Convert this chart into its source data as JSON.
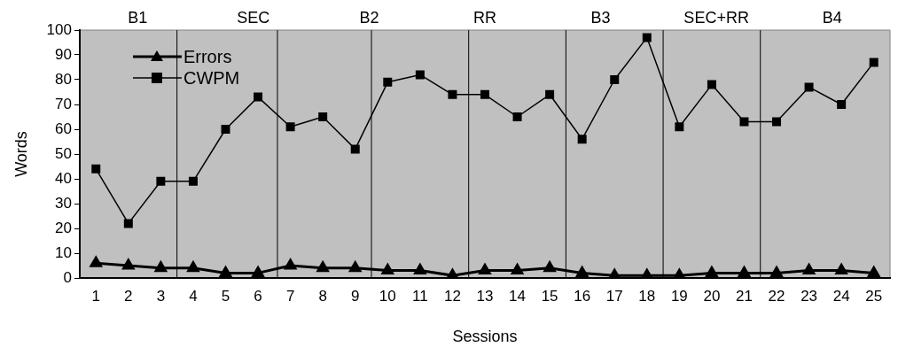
{
  "chart_data": {
    "type": "line",
    "xlabel": "Sessions",
    "ylabel": "Words",
    "x": [
      1,
      2,
      3,
      4,
      5,
      6,
      7,
      8,
      9,
      10,
      11,
      12,
      13,
      14,
      15,
      16,
      17,
      18,
      19,
      20,
      21,
      22,
      23,
      24,
      25
    ],
    "xlim": [
      0.5,
      25.5
    ],
    "xticks": [
      1,
      2,
      3,
      4,
      5,
      6,
      7,
      8,
      9,
      10,
      11,
      12,
      13,
      14,
      15,
      16,
      17,
      18,
      19,
      20,
      21,
      22,
      23,
      24,
      25
    ],
    "ylim": [
      0,
      100
    ],
    "yticks": [
      0,
      10,
      20,
      30,
      40,
      50,
      60,
      70,
      80,
      90,
      100
    ],
    "grid": false,
    "legend": "top left",
    "series": [
      {
        "name": "Errors",
        "color": "#000000",
        "marker": "triangle",
        "values": [
          6,
          5,
          4,
          4,
          2,
          2,
          5,
          4,
          4,
          3,
          3,
          1,
          3,
          3,
          4,
          2,
          1,
          1,
          1,
          2,
          2,
          2,
          3,
          3,
          2
        ]
      },
      {
        "name": "CWPM",
        "color": "#000000",
        "marker": "square",
        "values": [
          44,
          22,
          39,
          39,
          60,
          73,
          61,
          65,
          52,
          79,
          82,
          74,
          74,
          65,
          74,
          56,
          80,
          97,
          61,
          78,
          63,
          63,
          77,
          70,
          87
        ]
      }
    ],
    "ref_lines": [
      {
        "axis": "x",
        "value": 3.5,
        "color": "#000000"
      },
      {
        "axis": "x",
        "value": 6.6,
        "color": "#000000"
      },
      {
        "axis": "x",
        "value": 9.5,
        "color": "#000000"
      },
      {
        "axis": "x",
        "value": 12.5,
        "color": "#000000"
      },
      {
        "axis": "x",
        "value": 15.5,
        "color": "#000000"
      },
      {
        "axis": "x",
        "value": 18.5,
        "color": "#000000"
      },
      {
        "axis": "x",
        "value": 21.5,
        "color": "#000000"
      }
    ],
    "annotations": [
      "B1",
      "SEC",
      "B2",
      "RR",
      "B3",
      "SEC+RR",
      "B4"
    ]
  }
}
